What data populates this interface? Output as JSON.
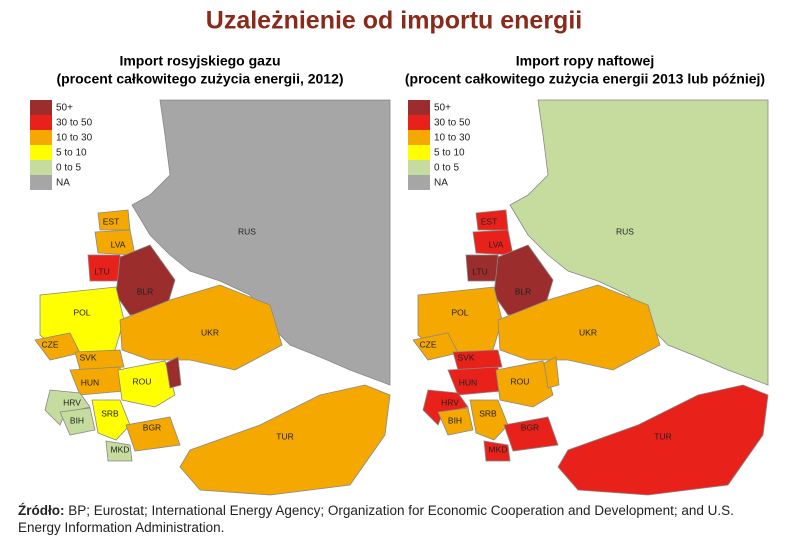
{
  "title": "Uzależnienie od importu energii",
  "maps": [
    {
      "title_line1": "Import rosyjskiego gazu",
      "title_line2": "(procent całkowitego zużycia energii, 2012)",
      "legend": [
        {
          "label": "50+",
          "color": "#9b2d2d"
        },
        {
          "label": "30 to 50",
          "color": "#e8221b"
        },
        {
          "label": "10 to 30",
          "color": "#f5a800"
        },
        {
          "label": "5 to 10",
          "color": "#ffff00"
        },
        {
          "label": "0 to 5",
          "color": "#c5dc9e"
        },
        {
          "label": "NA",
          "color": "#a6a6a6"
        }
      ],
      "countries": [
        {
          "label": "RUS",
          "class": 5
        },
        {
          "label": "EST",
          "class": 2
        },
        {
          "label": "LVA",
          "class": 2
        },
        {
          "label": "LTU",
          "class": 1
        },
        {
          "label": "BLR",
          "class": 0
        },
        {
          "label": "POL",
          "class": 3
        },
        {
          "label": "UKR",
          "class": 2
        },
        {
          "label": "CZE",
          "class": 2
        },
        {
          "label": "SVK",
          "class": 2
        },
        {
          "label": "HUN",
          "class": 2
        },
        {
          "label": "ROU",
          "class": 3
        },
        {
          "label": "HRV",
          "class": 4
        },
        {
          "label": "BIH",
          "class": 4
        },
        {
          "label": "SRB",
          "class": 3
        },
        {
          "label": "BGR",
          "class": 2
        },
        {
          "label": "MKD",
          "class": 4
        },
        {
          "label": "TUR",
          "class": 2
        },
        {
          "label": null,
          "class": 0
        }
      ]
    },
    {
      "title_line1": "Import ropy naftowej",
      "title_line2": "(procent całkowitego zużycia energii 2013 lub później)",
      "legend": [
        {
          "label": "50+",
          "color": "#9b2d2d"
        },
        {
          "label": "30 to 50",
          "color": "#e8221b"
        },
        {
          "label": "10 to 30",
          "color": "#f5a800"
        },
        {
          "label": "5 to 10",
          "color": "#ffff00"
        },
        {
          "label": "0 to 5",
          "color": "#c5dc9e"
        },
        {
          "label": "NA",
          "color": "#a6a6a6"
        }
      ],
      "countries": [
        {
          "label": "RUS",
          "class": 4
        },
        {
          "label": "EST",
          "class": 1
        },
        {
          "label": "LVA",
          "class": 1
        },
        {
          "label": "LTU",
          "class": 0
        },
        {
          "label": "BLR",
          "class": 0
        },
        {
          "label": "POL",
          "class": 2
        },
        {
          "label": "UKR",
          "class": 2
        },
        {
          "label": "CZE",
          "class": 2
        },
        {
          "label": "SVK",
          "class": 1
        },
        {
          "label": "HUN",
          "class": 1
        },
        {
          "label": "ROU",
          "class": 2
        },
        {
          "label": "HRV",
          "class": 1
        },
        {
          "label": "BIH",
          "class": 2
        },
        {
          "label": "SRB",
          "class": 2
        },
        {
          "label": "BGR",
          "class": 1
        },
        {
          "label": "MKD",
          "class": 1
        },
        {
          "label": "TUR",
          "class": 1
        },
        {
          "label": null,
          "class": 2
        }
      ]
    }
  ],
  "source": {
    "label": "Źródło:",
    "text": "BP; Eurostat; International Energy Agency; Organization for Economic Cooperation and Development; and U.S. Energy Information Administration."
  }
}
